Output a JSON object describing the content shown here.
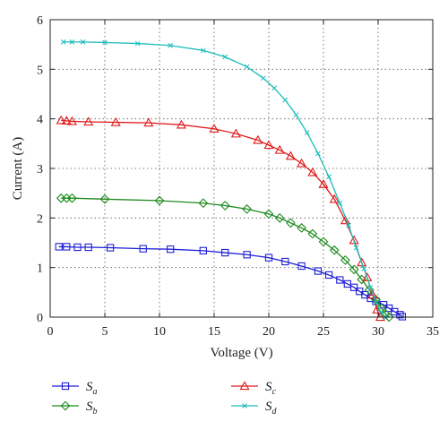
{
  "chart_data": {
    "type": "line",
    "xlabel": "Voltage (V)",
    "ylabel": "Current (A)",
    "xlim": [
      0,
      35
    ],
    "ylim": [
      0,
      6
    ],
    "xticks": [
      0,
      5,
      10,
      15,
      20,
      25,
      30,
      35
    ],
    "yticks": [
      0,
      1,
      2,
      3,
      4,
      5,
      6
    ],
    "grid": true,
    "legend_position": "bottom",
    "series": [
      {
        "name": "Sa",
        "name_main": "S",
        "name_sub": "a",
        "color": "#1f1fd6",
        "marker": "square",
        "x": [
          0.8,
          1.5,
          2.5,
          3.5,
          5.5,
          8.5,
          11,
          14,
          16,
          18,
          20,
          21.5,
          23,
          24.5,
          25.5,
          26.5,
          27.2,
          27.8,
          28.3,
          28.8,
          29.3,
          29.8,
          30.5,
          31,
          31.5,
          32,
          32.2
        ],
        "y": [
          1.42,
          1.42,
          1.41,
          1.41,
          1.4,
          1.38,
          1.37,
          1.34,
          1.3,
          1.26,
          1.2,
          1.12,
          1.03,
          0.93,
          0.85,
          0.75,
          0.67,
          0.6,
          0.52,
          0.45,
          0.38,
          0.32,
          0.25,
          0.18,
          0.11,
          0.05,
          0.01
        ]
      },
      {
        "name": "Sb",
        "name_main": "S",
        "name_sub": "b",
        "color": "#1e8a1e",
        "marker": "diamond",
        "x": [
          1,
          1.5,
          2,
          5,
          10,
          14,
          16,
          18,
          20,
          21,
          22,
          23,
          24,
          25,
          26,
          27,
          27.8,
          28.5,
          29.2,
          29.8,
          30.3,
          30.7,
          31
        ],
        "y": [
          2.4,
          2.4,
          2.4,
          2.38,
          2.35,
          2.3,
          2.25,
          2.18,
          2.08,
          2.0,
          1.9,
          1.8,
          1.68,
          1.52,
          1.35,
          1.15,
          0.96,
          0.76,
          0.55,
          0.35,
          0.18,
          0.06,
          0.0
        ]
      },
      {
        "name": "Sc",
        "name_main": "S",
        "name_sub": "c",
        "color": "#e01a1a",
        "marker": "triangle",
        "x": [
          1,
          1.5,
          2,
          3.5,
          6,
          9,
          12,
          15,
          17,
          19,
          20,
          21,
          22,
          23,
          24,
          25,
          26,
          27,
          27.8,
          28.5,
          29,
          29.5,
          29.9,
          30.2
        ],
        "y": [
          3.97,
          3.96,
          3.95,
          3.94,
          3.93,
          3.92,
          3.88,
          3.8,
          3.7,
          3.57,
          3.47,
          3.37,
          3.25,
          3.1,
          2.92,
          2.68,
          2.38,
          1.95,
          1.55,
          1.1,
          0.8,
          0.45,
          0.15,
          0.0
        ]
      },
      {
        "name": "Sd",
        "name_main": "S",
        "name_sub": "d",
        "color": "#1cbcbc",
        "marker": "x",
        "x": [
          1.2,
          2,
          3,
          5,
          8,
          11,
          14,
          16,
          18,
          19.5,
          20.5,
          21.5,
          22.5,
          23.5,
          24.5,
          25.5,
          26.5,
          27.3,
          28,
          28.7,
          29.3,
          29.8,
          30.3,
          30.7
        ],
        "y": [
          5.55,
          5.55,
          5.55,
          5.54,
          5.52,
          5.48,
          5.38,
          5.25,
          5.05,
          4.82,
          4.62,
          4.38,
          4.08,
          3.72,
          3.3,
          2.83,
          2.3,
          1.85,
          1.4,
          0.98,
          0.6,
          0.3,
          0.08,
          0.0
        ]
      }
    ]
  }
}
